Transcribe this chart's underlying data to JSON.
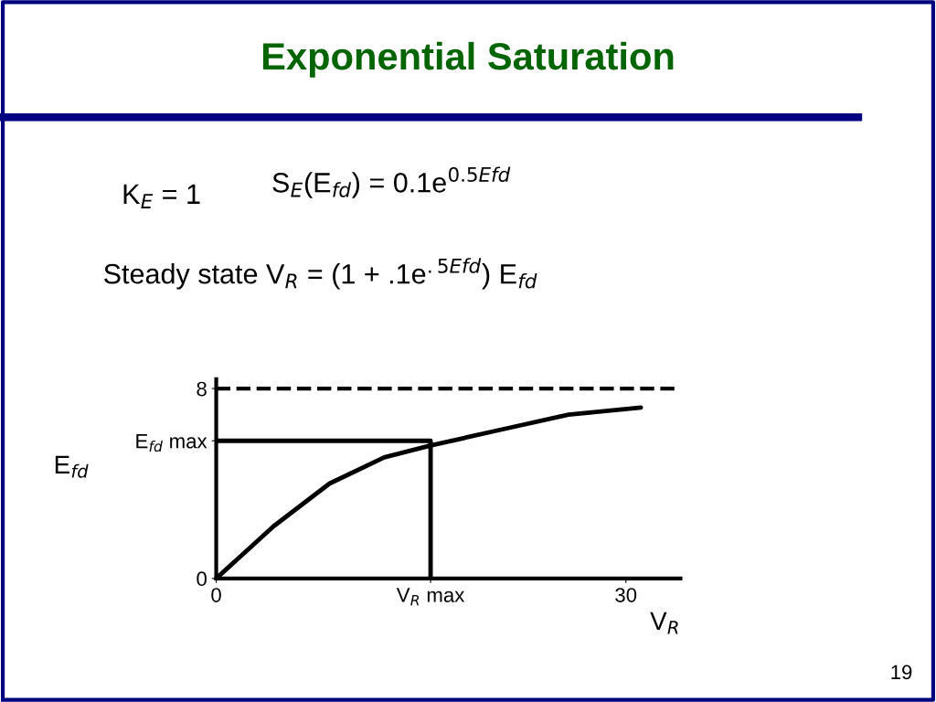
{
  "chart_data": {
    "type": "line",
    "title": "Exponential Saturation",
    "xlabel": "V$_{R}$",
    "ylabel": "E$_{fd}$",
    "xlim": [
      0,
      34
    ],
    "ylim": [
      0,
      8.4
    ],
    "xticks": [
      0,
      {
        "value": 15.7,
        "label": "V$_{R}$ max"
      },
      30
    ],
    "yticks": [
      0,
      {
        "value": 5.8,
        "label": "E$_{fd}$ max"
      },
      8
    ],
    "series": [
      {
        "color": "#000000",
        "x": [
          0,
          4.2,
          8.3,
          12.3,
          15.7,
          21.1,
          25.8,
          31.1
        ],
        "values": [
          0,
          2.2,
          4.0,
          5.1,
          5.6,
          6.3,
          6.9,
          7.2
        ]
      },
      {
        "color": "#000000",
        "x": [
          0,
          15.7,
          15.7
        ],
        "values": [
          5.8,
          5.8,
          0
        ]
      }
    ],
    "ref_lines": [
      {
        "axis": "y",
        "value": 8,
        "label": null,
        "color": "#000000",
        "line_style": "dashed"
      }
    ],
    "annotations": [
      "K$_{E}$ = 1",
      "S$_{E}$(E$_{fd}$) = 0.1e$^{0.5Efd}$",
      "Steady state V$_{R}$ = (1 + .1e$^{.5Efd}$) E$_{fd}$",
      "19"
    ],
    "grid": false,
    "legend": false,
    "marker": "none",
    "line_style": "solid"
  }
}
